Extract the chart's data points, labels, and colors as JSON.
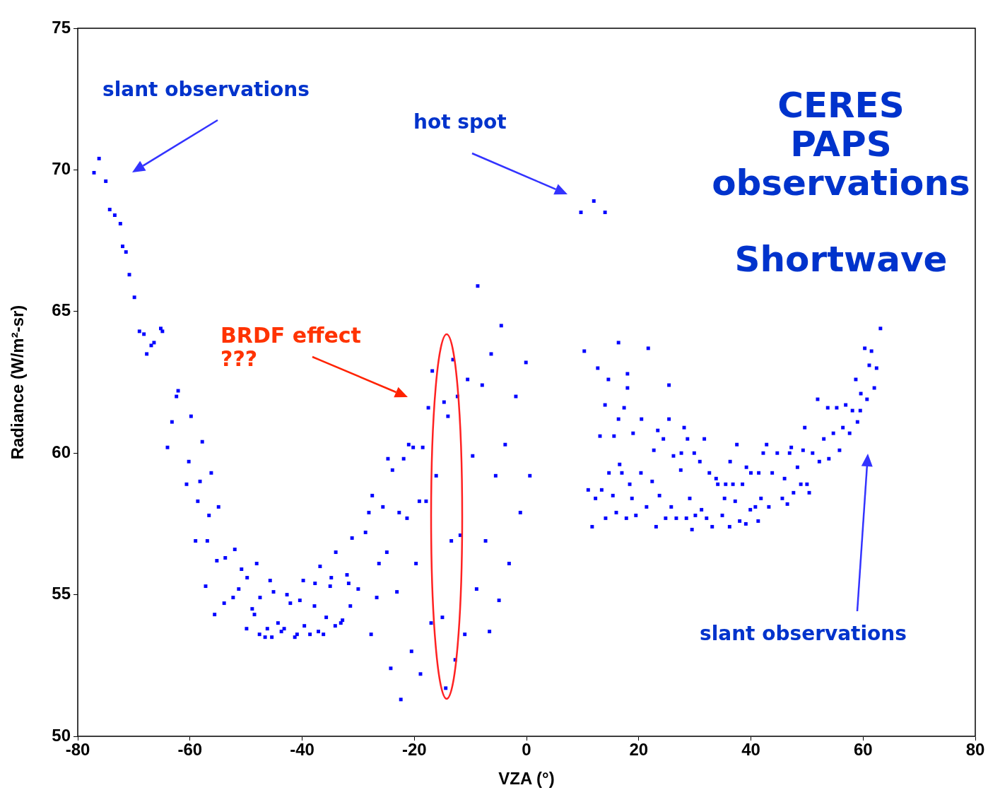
{
  "chart_data": {
    "type": "scatter",
    "xlabel": "VZA (°)",
    "ylabel": "Radiance (W/m²-sr)",
    "xlim": [
      -80,
      80
    ],
    "xticks": [
      -80,
      -60,
      -40,
      -20,
      0,
      20,
      40,
      60,
      80
    ],
    "ylim": [
      50,
      75
    ],
    "yticks": [
      50,
      55,
      60,
      65,
      70,
      75
    ],
    "marker": "square",
    "annotations": [
      "slant observations",
      "hot spot",
      "BRDF effect\n???",
      "slant observations",
      "CERES\nPAPS\nobservations",
      "Shortwave"
    ],
    "series": [
      {
        "color": "#0000ff",
        "x": [
          -77.1,
          -76.2,
          -75,
          -74.3,
          -73.4,
          -72.4,
          -72,
          -71.4,
          -70.8,
          -69.9,
          -69,
          -68.2,
          -67.7,
          -66.9,
          -66.4,
          -65.2,
          -64.9,
          -62.1,
          -62.4,
          -59.8,
          -63.2,
          -64,
          -57.8,
          -60.2,
          -56.2,
          -58.2,
          -60.6,
          -58.6,
          -54.9,
          -56.6,
          -59,
          -56.9,
          -52,
          -53.7,
          -55.2,
          -48.1,
          -50.8,
          -49.8,
          -57.2,
          -45.7,
          -39.8,
          -45.1,
          -51.3,
          -52.3,
          -53.9,
          -47.5,
          -42.7,
          -42.1,
          -40.4,
          -37.7,
          -36.8,
          -34.8,
          -35,
          -32,
          -31.7,
          -30,
          -55.6,
          -48.9,
          -48.5,
          -37.8,
          -31.4,
          -26.7,
          -23.1,
          -49.9,
          -47.6,
          -46.2,
          -46.6,
          -45.4,
          -44.3,
          -43.2,
          -43.7,
          -40.9,
          -41.3,
          -39.6,
          -38.6,
          -37.1,
          -36.2,
          -35.7,
          -34.1,
          -32.8,
          -33.1,
          -27.7,
          -34,
          -31.1,
          -28.7,
          -28.1,
          -27.5,
          -25.6,
          -22.7,
          -21.3,
          -24.9,
          -26.3,
          -19.7,
          -24.7,
          -21.9,
          -23.9,
          -21,
          -20.2,
          -18.5,
          -19.1,
          -17.9,
          -17.5,
          -16.8,
          -16.1,
          -17,
          -20.5,
          -24.2,
          -18.9,
          -22.4,
          -8.7,
          -4.5,
          -6.3,
          -0.1,
          -13.1,
          -10.5,
          -7.9,
          -12.3,
          -1.9,
          -14.7,
          -14,
          -3.8,
          -9.6,
          -5.5,
          0.6,
          -1.1,
          -11.8,
          -13.4,
          -7.3,
          -3.1,
          -8.9,
          -4.9,
          -15,
          -6.6,
          -11,
          -12.7,
          -14.4,
          9.7,
          12,
          14,
          10.3,
          16.4,
          21.7,
          12.7,
          18,
          14.6,
          18,
          25.4,
          14,
          17.4,
          16.4,
          20.5,
          25.4,
          13.1,
          15.6,
          19,
          23.4,
          28.1,
          24.4,
          28.7,
          31.7,
          22.7,
          26.2,
          27.6,
          29.9,
          30.9,
          37.5,
          16.6,
          14.7,
          17,
          20.4,
          27.5,
          22.4,
          32.6,
          33.8,
          36.3,
          39.2,
          40,
          41.4,
          43.8,
          42.8,
          42.2,
          44.7,
          47.2,
          46.9,
          49.3,
          51,
          48.3,
          46,
          49.6,
          34.1,
          35.5,
          36.8,
          38.5,
          48.9,
          50,
          47.6,
          50.4,
          52.2,
          53.9,
          55.8,
          53,
          54.7,
          56.4,
          57.6,
          59,
          58.1,
          59.5,
          51.9,
          53.7,
          55.3,
          56.9,
          60.7,
          59.6,
          62,
          58.7,
          61.1,
          62.4,
          60.3,
          61.5,
          63.1,
          11,
          13.4,
          12.3,
          15.4,
          18.4,
          18.8,
          23.7,
          21.4,
          25.8,
          29.1,
          31.2,
          14.1,
          16,
          17.8,
          19.5,
          11.7,
          23.1,
          24.8,
          26.7,
          28.5,
          30.1,
          32.1,
          29.5,
          33.1,
          34.9,
          36.2,
          38,
          39.1,
          41.3,
          35.3,
          37.2,
          39.9,
          40.8,
          41.8,
          43.2,
          45.6,
          46.5
        ],
        "values": [
          69.9,
          70.4,
          69.6,
          68.6,
          68.4,
          68.1,
          67.3,
          67.1,
          66.3,
          65.5,
          64.3,
          64.2,
          63.5,
          63.8,
          63.9,
          64.4,
          64.3,
          62.2,
          62,
          61.3,
          61.1,
          60.2,
          60.4,
          59.7,
          59.3,
          59,
          58.9,
          58.3,
          58.1,
          57.8,
          56.9,
          56.9,
          56.6,
          56.3,
          56.2,
          56.1,
          55.9,
          55.6,
          55.3,
          55.5,
          55.5,
          55.1,
          55.2,
          54.9,
          54.7,
          54.9,
          55,
          54.7,
          54.8,
          55.4,
          56,
          55.6,
          55.3,
          55.7,
          55.4,
          55.2,
          54.3,
          54.5,
          54.3,
          54.6,
          54.6,
          54.9,
          55.1,
          53.8,
          53.6,
          53.8,
          53.5,
          53.5,
          54,
          53.8,
          53.7,
          53.6,
          53.5,
          53.9,
          53.6,
          53.7,
          53.6,
          54.2,
          53.9,
          54.1,
          54,
          53.6,
          56.5,
          57,
          57.2,
          57.9,
          58.5,
          58.1,
          57.9,
          57.7,
          56.5,
          56.1,
          56.1,
          59.8,
          59.8,
          59.4,
          60.3,
          60.2,
          60.2,
          58.3,
          58.3,
          61.6,
          62.9,
          59.2,
          54,
          53,
          52.4,
          52.2,
          51.3,
          65.9,
          64.5,
          63.5,
          63.2,
          63.3,
          62.6,
          62.4,
          62,
          62,
          61.8,
          61.3,
          60.3,
          59.9,
          59.2,
          59.2,
          57.9,
          57.1,
          56.9,
          56.9,
          56.1,
          55.2,
          54.8,
          54.2,
          53.7,
          53.6,
          52.7,
          51.7,
          68.5,
          68.9,
          68.5,
          63.6,
          63.9,
          63.7,
          63,
          62.8,
          62.6,
          62.3,
          62.4,
          61.7,
          61.6,
          61.2,
          61.2,
          61.2,
          60.6,
          60.6,
          60.7,
          60.8,
          60.9,
          60.5,
          60.5,
          60.5,
          60.1,
          59.9,
          60,
          60,
          59.7,
          60.3,
          59.6,
          59.3,
          59.3,
          59.3,
          59.4,
          59,
          59.3,
          59.1,
          59.7,
          59.5,
          59.3,
          59.3,
          59.3,
          60.3,
          60,
          60,
          60.2,
          60,
          60.1,
          60,
          59.5,
          59.1,
          60.9,
          58.9,
          58.9,
          58.9,
          58.9,
          58.9,
          58.9,
          58.6,
          58.6,
          59.7,
          59.8,
          60.1,
          60.5,
          60.7,
          60.9,
          60.7,
          61.1,
          61.5,
          61.5,
          61.9,
          61.6,
          61.6,
          61.7,
          61.9,
          62.1,
          62.3,
          62.6,
          63.1,
          63,
          63.7,
          63.6,
          64.4,
          58.7,
          58.7,
          58.4,
          58.5,
          58.9,
          58.4,
          58.5,
          58.1,
          58.1,
          58.4,
          58,
          57.7,
          57.9,
          57.7,
          57.8,
          57.4,
          57.4,
          57.7,
          57.7,
          57.7,
          57.8,
          57.7,
          57.3,
          57.4,
          57.8,
          57.4,
          57.6,
          57.5,
          57.6,
          58.4,
          58.3,
          58,
          58.1,
          58.4,
          58.1,
          58.4,
          58.2
        ]
      }
    ]
  }
}
